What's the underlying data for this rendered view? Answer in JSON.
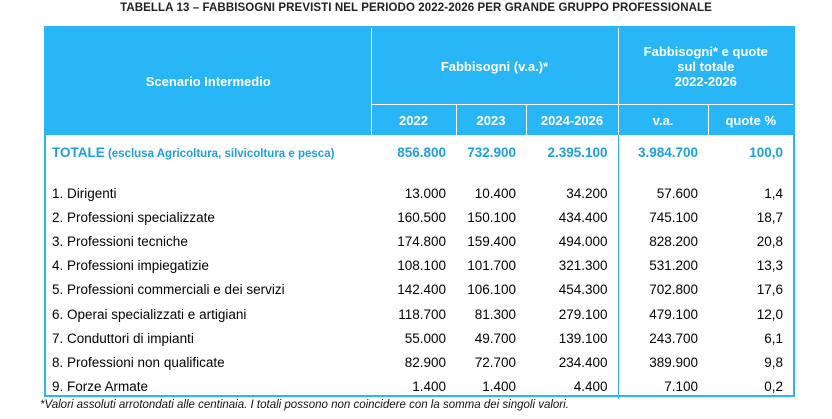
{
  "title": "TABELLA 13 – FABBISOGNI PREVISTI NEL PERIODO 2022-2026 PER GRANDE GRUPPO PROFESSIONALE",
  "header": {
    "scenario": "Scenario Intermedio",
    "group1": "Fabbisogni (v.a.)*",
    "group2_l1": "Fabbisogni* e quote",
    "group2_l2": "sul totale",
    "group2_l3": "2022-2026",
    "cols": [
      "2022",
      "2023",
      "2024-2026",
      "v.a.",
      "quote %"
    ]
  },
  "total": {
    "label": "TOTALE",
    "note": " (esclusa Agricoltura, silvicoltura e pesca)",
    "values": [
      "856.800",
      "732.900",
      "2.395.100",
      "3.984.700",
      "100,0"
    ]
  },
  "rows": [
    {
      "label": "1. Dirigenti",
      "values": [
        "13.000",
        "10.400",
        "34.200",
        "57.600",
        "1,4"
      ]
    },
    {
      "label": "2. Professioni specializzate",
      "values": [
        "160.500",
        "150.100",
        "434.400",
        "745.100",
        "18,7"
      ]
    },
    {
      "label": "3. Professioni tecniche",
      "values": [
        "174.800",
        "159.400",
        "494.000",
        "828.200",
        "20,8"
      ]
    },
    {
      "label": "4. Professioni impiegatizie",
      "values": [
        "108.100",
        "101.700",
        "321.300",
        "531.200",
        "13,3"
      ]
    },
    {
      "label": "5. Professioni commerciali e dei servizi",
      "values": [
        "142.400",
        "106.100",
        "454.300",
        "702.800",
        "17,6"
      ]
    },
    {
      "label": "6. Operai specializzati e artigiani",
      "values": [
        "118.700",
        "81.300",
        "279.100",
        "479.100",
        "12,0"
      ]
    },
    {
      "label": "7. Conduttori di impianti",
      "values": [
        "55.000",
        "49.700",
        "139.100",
        "243.700",
        "6,1"
      ]
    },
    {
      "label": "8. Professioni non qualificate",
      "values": [
        "82.900",
        "72.700",
        "234.400",
        "389.900",
        "9,8"
      ]
    },
    {
      "label": "9. Forze Armate",
      "values": [
        "1.400",
        "1.400",
        "4.400",
        "7.100",
        "0,2"
      ]
    }
  ],
  "footnote": "*Valori assoluti arrotondati alle centinaia. I totali possono non coincidere con la somma dei singoli valori."
}
